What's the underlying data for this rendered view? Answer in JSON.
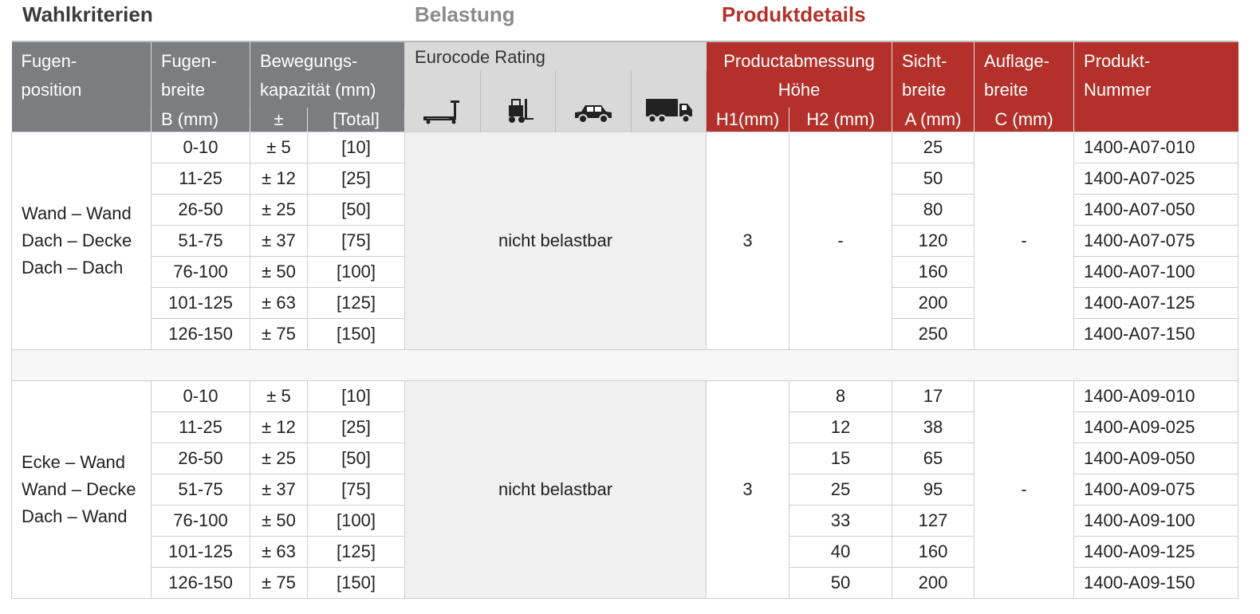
{
  "sections": {
    "selection": "Wahlkriterien",
    "load": "Belastung",
    "details": "Produktdetails"
  },
  "header": {
    "col_position": [
      "Fugen-",
      "position"
    ],
    "col_width": [
      "Fugen-",
      "breite",
      "B (mm)"
    ],
    "col_movement": [
      "Bewegungs-",
      "kapazität (mm)"
    ],
    "movement_plusminus": "±",
    "movement_total": "[Total]",
    "eurocode": "Eurocode Rating",
    "icons": [
      "pallet-truck-icon",
      "forklift-icon",
      "car-icon",
      "truck-icon"
    ],
    "product_dim": [
      "Productabmessung",
      "Höhe"
    ],
    "h1": "H1(mm)",
    "h2": "H2 (mm)",
    "visible_width": [
      "Sicht-",
      "breite",
      "A (mm)"
    ],
    "support_width": [
      "Auflage-",
      "breite",
      "C (mm)"
    ],
    "product_number": [
      "Produkt-",
      "Nummer"
    ]
  },
  "groups": [
    {
      "positions": [
        "Wand – Wand",
        "Dach – Decke",
        "Dach – Dach"
      ],
      "load": "nicht belastbar",
      "h1": "3",
      "h2_single": "-",
      "support": "-",
      "rows": [
        {
          "width": "0-10",
          "pm": "± 5",
          "total": "[10]",
          "a": "25",
          "pn": "1400-A07-010"
        },
        {
          "width": "11-25",
          "pm": "± 12",
          "total": "[25]",
          "a": "50",
          "pn": "1400-A07-025"
        },
        {
          "width": "26-50",
          "pm": "± 25",
          "total": "[50]",
          "a": "80",
          "pn": "1400-A07-050"
        },
        {
          "width": "51-75",
          "pm": "± 37",
          "total": "[75]",
          "a": "120",
          "pn": "1400-A07-075"
        },
        {
          "width": "76-100",
          "pm": "± 50",
          "total": "[100]",
          "a": "160",
          "pn": "1400-A07-100"
        },
        {
          "width": "101-125",
          "pm": "± 63",
          "total": "[125]",
          "a": "200",
          "pn": "1400-A07-125"
        },
        {
          "width": "126-150",
          "pm": "± 75",
          "total": "[150]",
          "a": "250",
          "pn": "1400-A07-150"
        }
      ]
    },
    {
      "positions": [
        "Ecke – Wand",
        "Wand – Decke",
        "Dach – Wand"
      ],
      "load": "nicht belastbar",
      "h1": "3",
      "support": "-",
      "rows": [
        {
          "width": "0-10",
          "pm": "± 5",
          "total": "[10]",
          "h2": "8",
          "a": "17",
          "pn": "1400-A09-010"
        },
        {
          "width": "11-25",
          "pm": "± 12",
          "total": "[25]",
          "h2": "12",
          "a": "38",
          "pn": "1400-A09-025"
        },
        {
          "width": "26-50",
          "pm": "± 25",
          "total": "[50]",
          "h2": "15",
          "a": "65",
          "pn": "1400-A09-050"
        },
        {
          "width": "51-75",
          "pm": "± 37",
          "total": "[75]",
          "h2": "25",
          "a": "95",
          "pn": "1400-A09-075"
        },
        {
          "width": "76-100",
          "pm": "± 50",
          "total": "[100]",
          "h2": "33",
          "a": "127",
          "pn": "1400-A09-100"
        },
        {
          "width": "101-125",
          "pm": "± 63",
          "total": "[125]",
          "h2": "40",
          "a": "160",
          "pn": "1400-A09-125"
        },
        {
          "width": "126-150",
          "pm": "± 75",
          "total": "[150]",
          "h2": "50",
          "a": "200",
          "pn": "1400-A09-150"
        }
      ]
    }
  ],
  "colors": {
    "grey_header": "#7b7d80",
    "red_header": "#b3312a",
    "light_grey": "#d9d9d9"
  }
}
